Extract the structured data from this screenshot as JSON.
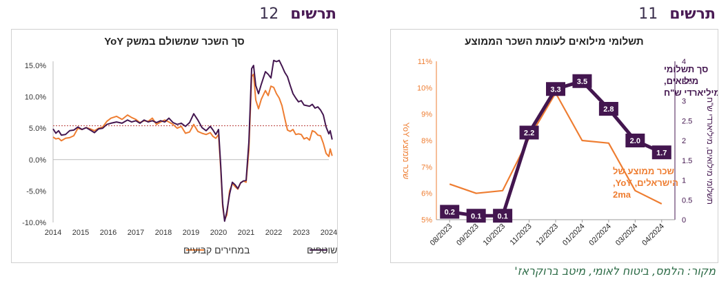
{
  "figures": {
    "left": {
      "label": "תרשים",
      "number": "12"
    },
    "right": {
      "label": "תרשים",
      "number": "11"
    }
  },
  "source_note": "מקור: הלמס, ביטוח לאומי, מיטב ברוקראז'",
  "colors": {
    "purple": "#43164f",
    "orange": "#ee7d31",
    "dashed": "#c0504d"
  },
  "chart_data": [
    {
      "type": "line",
      "title": "סך השכר שמשולם במשק YoY",
      "x_ticks": [
        "2014",
        "2015",
        "2016",
        "2017",
        "2018",
        "2019",
        "2020",
        "2021",
        "2022",
        "2023",
        "2024"
      ],
      "y_ticks": [
        "15.0%",
        "10.0%",
        "5.0%",
        "0.0%",
        "-5.0%",
        "-10.0%"
      ],
      "ylim": [
        -10,
        15
      ],
      "xlim": [
        2014,
        2024
      ],
      "reference_line": {
        "y": 5.4,
        "style": "dashed"
      },
      "legend": [
        "במחירים שוטפים",
        "במחירים קבועים"
      ],
      "series": [
        {
          "name": "במחירים שוטפים",
          "color": "#43164f",
          "points": [
            [
              2014.0,
              4.9
            ],
            [
              2014.1,
              4.2
            ],
            [
              2014.2,
              4.6
            ],
            [
              2014.3,
              3.9
            ],
            [
              2014.45,
              4.0
            ],
            [
              2014.6,
              4.6
            ],
            [
              2014.75,
              4.7
            ],
            [
              2014.9,
              5.2
            ],
            [
              2015.05,
              4.8
            ],
            [
              2015.2,
              5.1
            ],
            [
              2015.35,
              4.7
            ],
            [
              2015.5,
              4.3
            ],
            [
              2015.65,
              4.9
            ],
            [
              2015.8,
              5.0
            ],
            [
              2015.95,
              5.6
            ],
            [
              2016.1,
              5.8
            ],
            [
              2016.3,
              6.0
            ],
            [
              2016.5,
              5.8
            ],
            [
              2016.7,
              6.3
            ],
            [
              2016.85,
              6.0
            ],
            [
              2017.0,
              6.2
            ],
            [
              2017.15,
              5.8
            ],
            [
              2017.3,
              6.3
            ],
            [
              2017.45,
              6.0
            ],
            [
              2017.6,
              6.2
            ],
            [
              2017.75,
              5.9
            ],
            [
              2017.9,
              6.2
            ],
            [
              2018.05,
              6.0
            ],
            [
              2018.2,
              6.6
            ],
            [
              2018.35,
              5.9
            ],
            [
              2018.5,
              5.6
            ],
            [
              2018.65,
              5.8
            ],
            [
              2018.8,
              5.3
            ],
            [
              2018.95,
              5.9
            ],
            [
              2019.1,
              7.3
            ],
            [
              2019.25,
              6.3
            ],
            [
              2019.4,
              5.1
            ],
            [
              2019.55,
              4.6
            ],
            [
              2019.7,
              5.3
            ],
            [
              2019.8,
              4.7
            ],
            [
              2019.9,
              4.0
            ],
            [
              2020.0,
              4.8
            ],
            [
              2020.08,
              -1.0
            ],
            [
              2020.15,
              -7.0
            ],
            [
              2020.22,
              -9.8
            ],
            [
              2020.3,
              -8.3
            ],
            [
              2020.4,
              -5.5
            ],
            [
              2020.5,
              -3.6
            ],
            [
              2020.6,
              -4.0
            ],
            [
              2020.7,
              -4.6
            ],
            [
              2020.8,
              -3.7
            ],
            [
              2020.9,
              -3.4
            ],
            [
              2021.0,
              -3.3
            ],
            [
              2021.1,
              2.8
            ],
            [
              2021.2,
              14.5
            ],
            [
              2021.27,
              15.0
            ],
            [
              2021.35,
              11.8
            ],
            [
              2021.45,
              10.5
            ],
            [
              2021.55,
              12.0
            ],
            [
              2021.7,
              14.0
            ],
            [
              2021.8,
              13.6
            ],
            [
              2021.9,
              13.0
            ],
            [
              2022.0,
              15.8
            ],
            [
              2022.1,
              15.6
            ],
            [
              2022.2,
              15.8
            ],
            [
              2022.3,
              14.9
            ],
            [
              2022.4,
              13.9
            ],
            [
              2022.5,
              13.2
            ],
            [
              2022.6,
              11.8
            ],
            [
              2022.7,
              10.5
            ],
            [
              2022.8,
              9.8
            ],
            [
              2022.9,
              9.2
            ],
            [
              2023.0,
              9.4
            ],
            [
              2023.1,
              8.7
            ],
            [
              2023.2,
              8.6
            ],
            [
              2023.3,
              8.5
            ],
            [
              2023.4,
              8.8
            ],
            [
              2023.5,
              8.2
            ],
            [
              2023.6,
              8.4
            ],
            [
              2023.7,
              7.9
            ],
            [
              2023.8,
              7.1
            ],
            [
              2023.9,
              5.2
            ],
            [
              2024.0,
              4.1
            ],
            [
              2024.05,
              4.6
            ],
            [
              2024.12,
              3.2
            ]
          ]
        },
        {
          "name": "במחירים קבועים",
          "color": "#ee7d31",
          "points": [
            [
              2014.0,
              3.6
            ],
            [
              2014.1,
              3.3
            ],
            [
              2014.2,
              3.4
            ],
            [
              2014.3,
              3.0
            ],
            [
              2014.45,
              3.4
            ],
            [
              2014.6,
              3.5
            ],
            [
              2014.75,
              3.8
            ],
            [
              2014.9,
              5.0
            ],
            [
              2015.05,
              4.8
            ],
            [
              2015.2,
              5.1
            ],
            [
              2015.35,
              4.9
            ],
            [
              2015.5,
              4.6
            ],
            [
              2015.65,
              5.0
            ],
            [
              2015.8,
              5.2
            ],
            [
              2015.95,
              6.1
            ],
            [
              2016.1,
              6.6
            ],
            [
              2016.3,
              6.9
            ],
            [
              2016.5,
              6.4
            ],
            [
              2016.7,
              7.1
            ],
            [
              2016.85,
              6.7
            ],
            [
              2017.0,
              6.4
            ],
            [
              2017.15,
              5.9
            ],
            [
              2017.3,
              6.2
            ],
            [
              2017.45,
              6.1
            ],
            [
              2017.6,
              6.6
            ],
            [
              2017.75,
              5.6
            ],
            [
              2017.9,
              6.0
            ],
            [
              2018.05,
              6.3
            ],
            [
              2018.2,
              6.0
            ],
            [
              2018.35,
              5.6
            ],
            [
              2018.5,
              5.0
            ],
            [
              2018.65,
              5.3
            ],
            [
              2018.8,
              4.2
            ],
            [
              2018.95,
              4.4
            ],
            [
              2019.1,
              5.6
            ],
            [
              2019.25,
              4.5
            ],
            [
              2019.4,
              4.2
            ],
            [
              2019.55,
              4.0
            ],
            [
              2019.7,
              4.3
            ],
            [
              2019.8,
              3.7
            ],
            [
              2019.9,
              3.4
            ],
            [
              2020.0,
              4.0
            ],
            [
              2020.08,
              -1.5
            ],
            [
              2020.15,
              -7.5
            ],
            [
              2020.22,
              -9.6
            ],
            [
              2020.3,
              -8.8
            ],
            [
              2020.4,
              -5.0
            ],
            [
              2020.5,
              -3.8
            ],
            [
              2020.6,
              -4.3
            ],
            [
              2020.7,
              -4.7
            ],
            [
              2020.8,
              -3.7
            ],
            [
              2020.9,
              -3.4
            ],
            [
              2021.0,
              -3.6
            ],
            [
              2021.1,
              1.5
            ],
            [
              2021.2,
              13.2
            ],
            [
              2021.27,
              13.6
            ],
            [
              2021.35,
              9.5
            ],
            [
              2021.45,
              8.1
            ],
            [
              2021.55,
              9.6
            ],
            [
              2021.7,
              11.0
            ],
            [
              2021.8,
              10.2
            ],
            [
              2021.9,
              11.7
            ],
            [
              2022.0,
              11.5
            ],
            [
              2022.1,
              10.5
            ],
            [
              2022.2,
              9.8
            ],
            [
              2022.3,
              8.6
            ],
            [
              2022.4,
              6.6
            ],
            [
              2022.5,
              4.7
            ],
            [
              2022.6,
              4.5
            ],
            [
              2022.7,
              4.8
            ],
            [
              2022.8,
              4.0
            ],
            [
              2022.9,
              4.1
            ],
            [
              2023.0,
              4.0
            ],
            [
              2023.1,
              3.3
            ],
            [
              2023.2,
              3.5
            ],
            [
              2023.3,
              3.1
            ],
            [
              2023.4,
              4.6
            ],
            [
              2023.5,
              4.4
            ],
            [
              2023.6,
              3.9
            ],
            [
              2023.7,
              3.8
            ],
            [
              2023.8,
              2.6
            ],
            [
              2023.9,
              1.0
            ],
            [
              2024.0,
              0.5
            ],
            [
              2024.05,
              1.7
            ],
            [
              2024.12,
              0.6
            ]
          ]
        }
      ]
    },
    {
      "type": "line",
      "title": "תשלומי מילואים לעומת השכר הממוצע",
      "categories": [
        "08/2023",
        "09/2023",
        "10/2023",
        "11/2023",
        "12/2023",
        "01/2024",
        "02/2024",
        "03/2024",
        "04/2024"
      ],
      "y_left": {
        "label": "שכר ממוצע YoY",
        "ticks": [
          "11%",
          "10%",
          "9%",
          "8%",
          "7%",
          "6%",
          "5%"
        ],
        "range": [
          5,
          11
        ]
      },
      "y_right": {
        "label": "תשלומי מילואים, מיליארדי ש\"ח",
        "ticks": [
          "4",
          "3.5",
          "3",
          "2.5",
          "2",
          "1.5",
          "1",
          "0.5",
          "0"
        ],
        "range": [
          0,
          4
        ]
      },
      "series": [
        {
          "name": "סך תשלומי מילואים, מיליארדי ש\"ח",
          "color": "#43164f",
          "axis": "right",
          "values": [
            0.2,
            0.1,
            0.1,
            2.2,
            3.3,
            3.5,
            2.8,
            2.0,
            1.7
          ],
          "data_labels": [
            "0.2",
            "0.1",
            "0.1",
            "2.2",
            "3.3",
            "3.5",
            "2.8",
            "2.0",
            "1.7"
          ],
          "label_lines": [
            "סך תשלומי",
            "מילואים,",
            "מיליארדי ש\"ח"
          ]
        },
        {
          "name": "שכר ממוצע של הישראלים, YoY, 2ma",
          "color": "#ee7d31",
          "axis": "left",
          "values": [
            6.35,
            6.0,
            6.1,
            8.1,
            9.8,
            8.0,
            7.9,
            6.1,
            5.6
          ],
          "label_lines": [
            "שכר ממוצע של",
            "הישראלים, YoY,",
            "2ma"
          ]
        }
      ]
    }
  ]
}
